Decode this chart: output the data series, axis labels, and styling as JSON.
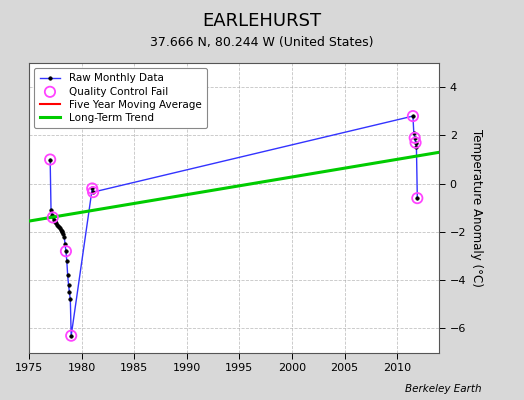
{
  "title": "EARLEHURST",
  "subtitle": "37.666 N, 80.244 W (United States)",
  "ylabel": "Temperature Anomaly (°C)",
  "watermark": "Berkeley Earth",
  "xlim": [
    1975,
    2014
  ],
  "ylim": [
    -7,
    5
  ],
  "yticks": [
    -6,
    -4,
    -2,
    0,
    2,
    4
  ],
  "xticks": [
    1975,
    1980,
    1985,
    1990,
    1995,
    2000,
    2005,
    2010
  ],
  "background_color": "#d8d8d8",
  "plot_background": "#ffffff",
  "raw_data_x": [
    1977.0,
    1977.083,
    1977.167,
    1977.25,
    1977.333,
    1977.417,
    1977.5,
    1977.583,
    1977.667,
    1977.75,
    1977.833,
    1977.917,
    1978.0,
    1978.083,
    1978.167,
    1978.25,
    1978.333,
    1978.417,
    1978.5,
    1978.583,
    1978.667,
    1978.75,
    1978.833,
    1978.917,
    1979.0,
    1981.0,
    1981.083,
    2011.5,
    2011.583,
    2011.667,
    2011.75,
    2011.833,
    2011.917
  ],
  "raw_data_y": [
    1.0,
    -1.1,
    -1.3,
    -1.4,
    -1.5,
    -1.6,
    -1.55,
    -1.65,
    -1.7,
    -1.75,
    -1.8,
    -1.85,
    -1.9,
    -1.95,
    -2.0,
    -2.1,
    -2.2,
    -2.5,
    -2.8,
    -3.2,
    -3.8,
    -4.2,
    -4.5,
    -4.8,
    -6.3,
    -0.2,
    -0.35,
    2.8,
    2.1,
    1.9,
    1.7,
    1.5,
    -0.6
  ],
  "qc_fail_x": [
    1977.0,
    1977.25,
    1978.5,
    1979.0,
    1981.0,
    1981.083,
    2011.5,
    2011.667,
    2011.75,
    2011.917
  ],
  "qc_fail_y": [
    1.0,
    -1.4,
    -2.8,
    -6.3,
    -0.2,
    -0.35,
    2.8,
    1.9,
    1.7,
    -0.6
  ],
  "trend_x": [
    1975,
    2014
  ],
  "trend_y": [
    -1.55,
    1.3
  ],
  "raw_color": "#3333ff",
  "raw_marker_color": "#000000",
  "qc_color": "#ff44ff",
  "trend_color": "#00cc00",
  "moving_avg_color": "#ff0000",
  "legend_loc": "upper left",
  "title_fontsize": 13,
  "subtitle_fontsize": 9,
  "tick_fontsize": 8,
  "ylabel_fontsize": 8.5
}
